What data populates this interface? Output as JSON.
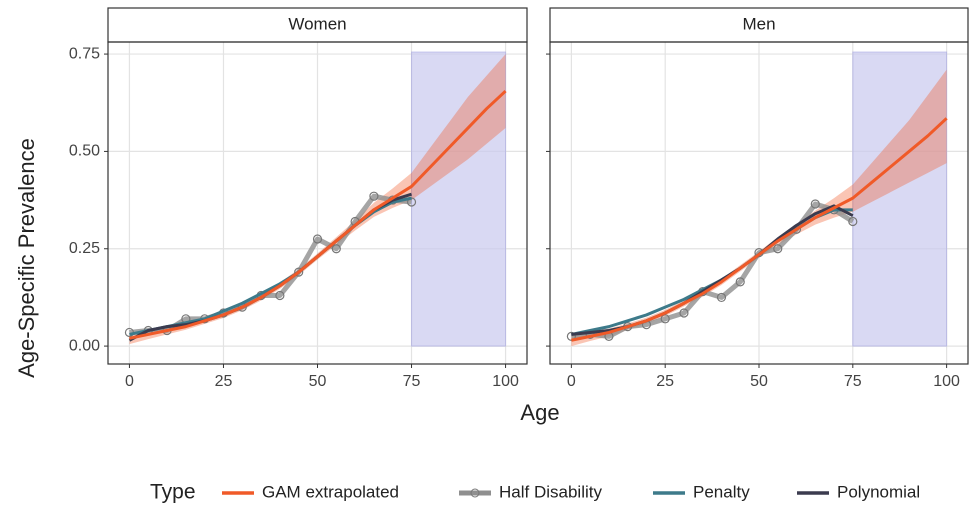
{
  "chart_data": {
    "type": "line",
    "xlabel": "Age",
    "ylabel": "Age-Specific Prevalence",
    "legend_title": "Type",
    "xlim": [
      -5.7,
      105.7
    ],
    "ylim": [
      -0.046,
      0.781
    ],
    "xticks": [
      0,
      25,
      50,
      75,
      100
    ],
    "yticks": [
      {
        "value": 0,
        "label": "0.00"
      },
      {
        "value": 0.25,
        "label": "0.25"
      },
      {
        "value": 0.5,
        "label": "0.50"
      },
      {
        "value": 0.75,
        "label": "0.75"
      }
    ],
    "grid": true,
    "extrapolation_range": [
      75,
      100
    ],
    "extrapolation_color": "#c9c9ee",
    "legend_position": "bottom",
    "panels": [
      {
        "title": "Women",
        "series": [
          {
            "name": "GAM extrapolated",
            "color": "#f05a28",
            "x": [
              0,
              5,
              10,
              15,
              20,
              25,
              30,
              35,
              40,
              45,
              50,
              55,
              60,
              65,
              70,
              75,
              80,
              85,
              90,
              95,
              100
            ],
            "values": [
              0.02,
              0.03,
              0.04,
              0.05,
              0.065,
              0.08,
              0.1,
              0.125,
              0.155,
              0.19,
              0.23,
              0.27,
              0.31,
              0.35,
              0.38,
              0.41,
              0.46,
              0.51,
              0.56,
              0.61,
              0.655
            ],
            "lower": [
              0.005,
              0.018,
              0.03,
              0.042,
              0.057,
              0.072,
              0.092,
              0.117,
              0.147,
              0.182,
              0.222,
              0.26,
              0.297,
              0.332,
              0.355,
              0.375,
              0.41,
              0.445,
              0.48,
              0.52,
              0.56
            ],
            "upper": [
              0.035,
              0.042,
              0.05,
              0.058,
              0.073,
              0.088,
              0.108,
              0.133,
              0.163,
              0.198,
              0.238,
              0.28,
              0.323,
              0.368,
              0.405,
              0.445,
              0.51,
              0.575,
              0.64,
              0.695,
              0.75
            ]
          },
          {
            "name": "Half Disability",
            "color": "#8f8f8f",
            "x": [
              0,
              5,
              10,
              15,
              20,
              25,
              30,
              35,
              40,
              45,
              50,
              55,
              60,
              65,
              70,
              75
            ],
            "values": [
              0.035,
              0.04,
              0.04,
              0.07,
              0.07,
              0.085,
              0.1,
              0.13,
              0.13,
              0.19,
              0.275,
              0.25,
              0.32,
              0.385,
              0.375,
              0.37
            ]
          },
          {
            "name": "Penalty",
            "color": "#3d7a8a",
            "x": [
              0,
              5,
              10,
              15,
              20,
              25,
              30,
              35,
              40,
              45,
              50,
              55,
              60,
              65,
              70,
              75
            ],
            "values": [
              0.03,
              0.04,
              0.05,
              0.06,
              0.07,
              0.09,
              0.11,
              0.135,
              0.16,
              0.19,
              0.23,
              0.27,
              0.31,
              0.345,
              0.37,
              0.38
            ]
          },
          {
            "name": "Polynomial",
            "color": "#3b3b4f",
            "x": [
              0,
              5,
              10,
              15,
              20,
              25,
              30,
              35,
              40,
              45,
              50,
              55,
              60,
              65,
              70,
              75
            ],
            "values": [
              0.015,
              0.04,
              0.05,
              0.055,
              0.065,
              0.08,
              0.1,
              0.125,
              0.155,
              0.19,
              0.23,
              0.27,
              0.31,
              0.35,
              0.375,
              0.39
            ]
          }
        ]
      },
      {
        "title": "Men",
        "series": [
          {
            "name": "GAM extrapolated",
            "color": "#f05a28",
            "x": [
              0,
              5,
              10,
              15,
              20,
              25,
              30,
              35,
              40,
              45,
              50,
              55,
              60,
              65,
              70,
              75,
              80,
              85,
              90,
              95,
              100
            ],
            "values": [
              0.015,
              0.025,
              0.035,
              0.05,
              0.065,
              0.085,
              0.11,
              0.135,
              0.165,
              0.2,
              0.235,
              0.27,
              0.3,
              0.33,
              0.355,
              0.38,
              0.42,
              0.46,
              0.5,
              0.54,
              0.585
            ],
            "lower": [
              0.0,
              0.013,
              0.025,
              0.042,
              0.057,
              0.077,
              0.102,
              0.127,
              0.157,
              0.192,
              0.227,
              0.26,
              0.287,
              0.312,
              0.33,
              0.345,
              0.37,
              0.395,
              0.42,
              0.445,
              0.47
            ],
            "upper": [
              0.03,
              0.037,
              0.045,
              0.058,
              0.073,
              0.093,
              0.118,
              0.143,
              0.173,
              0.208,
              0.243,
              0.28,
              0.313,
              0.348,
              0.38,
              0.415,
              0.47,
              0.525,
              0.58,
              0.645,
              0.71
            ]
          },
          {
            "name": "Half Disability",
            "color": "#8f8f8f",
            "x": [
              0,
              5,
              10,
              15,
              20,
              25,
              30,
              35,
              40,
              45,
              50,
              55,
              60,
              65,
              70,
              75
            ],
            "values": [
              0.025,
              0.03,
              0.025,
              0.05,
              0.055,
              0.07,
              0.085,
              0.14,
              0.125,
              0.165,
              0.24,
              0.25,
              0.3,
              0.365,
              0.35,
              0.32
            ]
          },
          {
            "name": "Penalty",
            "color": "#3d7a8a",
            "x": [
              0,
              5,
              10,
              15,
              20,
              25,
              30,
              35,
              40,
              45,
              50,
              55,
              60,
              65,
              70,
              75
            ],
            "values": [
              0.03,
              0.04,
              0.05,
              0.065,
              0.08,
              0.1,
              0.12,
              0.145,
              0.17,
              0.2,
              0.235,
              0.27,
              0.3,
              0.33,
              0.35,
              0.35
            ]
          },
          {
            "name": "Polynomial",
            "color": "#3b3b4f",
            "x": [
              0,
              5,
              10,
              15,
              20,
              25,
              30,
              35,
              40,
              45,
              50,
              55,
              60,
              65,
              70,
              75
            ],
            "values": [
              0.03,
              0.035,
              0.04,
              0.05,
              0.065,
              0.085,
              0.11,
              0.14,
              0.17,
              0.2,
              0.235,
              0.275,
              0.31,
              0.34,
              0.36,
              0.335
            ]
          }
        ]
      }
    ]
  }
}
